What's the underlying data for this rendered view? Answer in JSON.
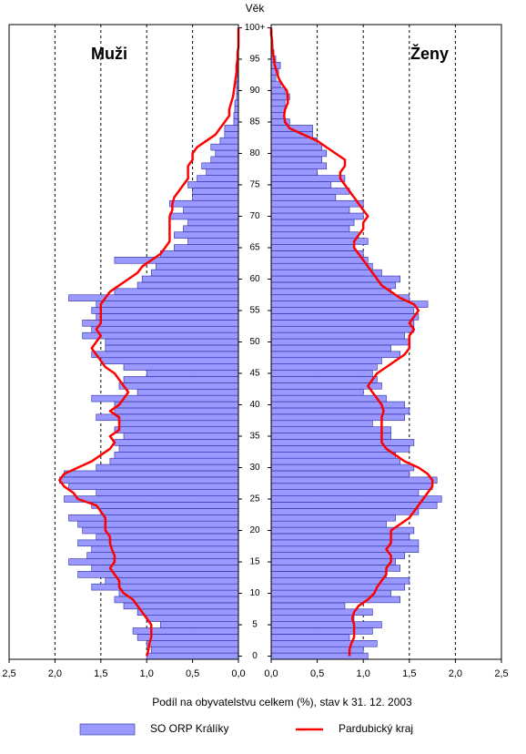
{
  "chart_data": {
    "type": "pyramid",
    "title": "Věk",
    "x_label": "Podíl na obyvatelstvu celkem (%), stav k  31. 12. 2003",
    "panel_labels": [
      "Muži",
      "Ženy"
    ],
    "categories": [
      "0",
      null,
      null,
      null,
      null,
      "5",
      null,
      null,
      null,
      null,
      "10",
      null,
      null,
      null,
      null,
      "15",
      null,
      null,
      null,
      null,
      "20",
      null,
      null,
      null,
      null,
      "25",
      null,
      null,
      null,
      null,
      "30",
      null,
      null,
      null,
      null,
      "35",
      null,
      null,
      null,
      null,
      "40",
      null,
      null,
      null,
      null,
      "45",
      null,
      null,
      null,
      null,
      "50",
      null,
      null,
      null,
      null,
      "55",
      null,
      null,
      null,
      null,
      "60",
      null,
      null,
      null,
      null,
      "65",
      null,
      null,
      null,
      null,
      "70",
      null,
      null,
      null,
      null,
      "75",
      null,
      null,
      null,
      null,
      "80",
      null,
      null,
      null,
      null,
      "85",
      null,
      null,
      null,
      null,
      "90",
      null,
      null,
      null,
      null,
      "95",
      null,
      null,
      null,
      null,
      "100+"
    ],
    "xlim": [
      0,
      2.5
    ],
    "xticks": [
      {
        "value": 2.5,
        "label": "2,5"
      },
      {
        "value": 2,
        "label": "2,0"
      },
      {
        "value": 1.5,
        "label": "1,5"
      },
      {
        "value": 1,
        "label": "1,0"
      },
      {
        "value": 0.5,
        "label": "0,5"
      },
      {
        "value": 0,
        "label": "0,0"
      }
    ],
    "grid": true,
    "series": [
      {
        "name": "SO ORP Králíky",
        "color": "#9999ff",
        "kind": "bar",
        "values": [
          [
            1.0,
            0.95,
            1.0,
            1.1,
            1.15,
            0.85,
            1.0,
            1.1,
            1.25,
            1.35,
            1.3,
            1.6,
            1.45,
            1.75,
            1.6,
            1.85,
            1.65,
            1.6,
            1.75,
            1.55,
            1.7,
            1.75,
            1.85,
            1.5,
            1.6,
            1.9,
            1.55,
            1.85,
            1.95,
            1.9,
            1.55,
            1.4,
            1.35,
            1.3,
            1.35,
            1.25,
            1.35,
            1.3,
            1.55,
            1.35,
            1.35,
            1.6,
            1.1,
            1.3,
            1.25,
            1.0,
            1.25,
            1.5,
            1.6,
            1.45,
            1.45,
            1.7,
            1.6,
            1.7,
            1.55,
            1.6,
            1.55,
            1.85,
            1.35,
            1.1,
            1.05,
            0.95,
            0.9,
            1.35,
            0.85,
            0.7,
            0.55,
            0.7,
            0.6,
            0.55,
            0.75,
            0.6,
            0.75,
            0.5,
            0.5,
            0.55,
            0.45,
            0.35,
            0.4,
            0.3,
            0.25,
            0.3,
            0.2,
            0.15,
            0.15,
            0.05,
            0.05,
            0.04,
            0.04,
            0.02,
            0.02,
            0.02,
            0.01,
            0.01,
            0.01,
            0.01,
            0,
            0,
            0,
            0,
            0
          ],
          [
            1.05,
            1.0,
            1.15,
            0.85,
            1.1,
            1.2,
            0.9,
            1.1,
            0.8,
            1.4,
            1.3,
            1.45,
            1.5,
            1.25,
            1.4,
            1.35,
            1.45,
            1.6,
            1.6,
            1.5,
            1.55,
            1.25,
            1.35,
            1.6,
            1.8,
            1.85,
            1.6,
            1.75,
            1.8,
            1.5,
            1.55,
            1.4,
            1.35,
            1.5,
            1.55,
            1.3,
            1.3,
            1.1,
            1.45,
            1.5,
            1.45,
            1.25,
            1.0,
            1.2,
            1.15,
            1.1,
            1.15,
            1.2,
            1.4,
            1.3,
            1.5,
            1.45,
            1.55,
            1.55,
            1.6,
            1.55,
            1.7,
            1.5,
            1.3,
            1.35,
            1.4,
            1.2,
            1.1,
            1.05,
            1.0,
            0.9,
            1.05,
            0.95,
            0.85,
            0.9,
            1.0,
            0.85,
            1.0,
            0.7,
            0.85,
            0.65,
            0.8,
            0.5,
            0.6,
            0.55,
            0.6,
            0.55,
            0.5,
            0.45,
            0.45,
            0.2,
            0.15,
            0.15,
            0.15,
            0.2,
            0.15,
            0.1,
            0.05,
            0.08,
            0.1,
            0.05,
            0.03,
            0.02,
            0.01,
            0.01,
            0
          ]
        ]
      },
      {
        "name": "Pardubický kraj",
        "color": "#ff0000",
        "kind": "line",
        "values": [
          [
            1.0,
            0.98,
            0.97,
            0.95,
            0.95,
            0.95,
            1.0,
            1.05,
            1.1,
            1.15,
            1.25,
            1.3,
            1.3,
            1.35,
            1.4,
            1.35,
            1.35,
            1.38,
            1.4,
            1.4,
            1.45,
            1.45,
            1.45,
            1.5,
            1.55,
            1.75,
            1.8,
            1.9,
            1.95,
            1.9,
            1.75,
            1.6,
            1.5,
            1.4,
            1.35,
            1.4,
            1.3,
            1.3,
            1.3,
            1.4,
            1.3,
            1.25,
            1.2,
            1.25,
            1.3,
            1.35,
            1.45,
            1.5,
            1.55,
            1.6,
            1.55,
            1.5,
            1.55,
            1.5,
            1.5,
            1.5,
            1.5,
            1.45,
            1.4,
            1.3,
            1.2,
            1.1,
            1.05,
            0.95,
            0.85,
            0.8,
            0.75,
            0.75,
            0.75,
            0.75,
            0.75,
            0.72,
            0.72,
            0.7,
            0.65,
            0.6,
            0.55,
            0.55,
            0.55,
            0.5,
            0.5,
            0.45,
            0.35,
            0.25,
            0.2,
            0.15,
            0.1,
            0.1,
            0.08,
            0.06,
            0.05,
            0.04,
            0.03,
            0.02,
            0.02,
            0.01,
            0.01,
            0,
            0,
            0,
            0
          ],
          [
            0.85,
            0.85,
            0.87,
            0.9,
            0.9,
            0.9,
            0.88,
            0.9,
            0.95,
            1.05,
            1.12,
            1.15,
            1.2,
            1.25,
            1.25,
            1.3,
            1.3,
            1.25,
            1.3,
            1.3,
            1.3,
            1.4,
            1.5,
            1.55,
            1.6,
            1.65,
            1.7,
            1.75,
            1.75,
            1.7,
            1.6,
            1.45,
            1.35,
            1.25,
            1.2,
            1.2,
            1.2,
            1.2,
            1.2,
            1.22,
            1.2,
            1.15,
            1.1,
            1.05,
            1.1,
            1.15,
            1.25,
            1.35,
            1.45,
            1.5,
            1.5,
            1.5,
            1.55,
            1.5,
            1.55,
            1.6,
            1.55,
            1.4,
            1.3,
            1.2,
            1.15,
            1.1,
            1.05,
            1.0,
            0.95,
            0.9,
            0.9,
            0.95,
            1.0,
            1.0,
            1.05,
            1.0,
            0.95,
            0.9,
            0.85,
            0.8,
            0.75,
            0.75,
            0.8,
            0.8,
            0.7,
            0.6,
            0.5,
            0.35,
            0.2,
            0.15,
            0.14,
            0.15,
            0.18,
            0.18,
            0.17,
            0.12,
            0.08,
            0.06,
            0.04,
            0.03,
            0.02,
            0.01,
            0.01,
            0,
            0
          ]
        ]
      }
    ]
  }
}
